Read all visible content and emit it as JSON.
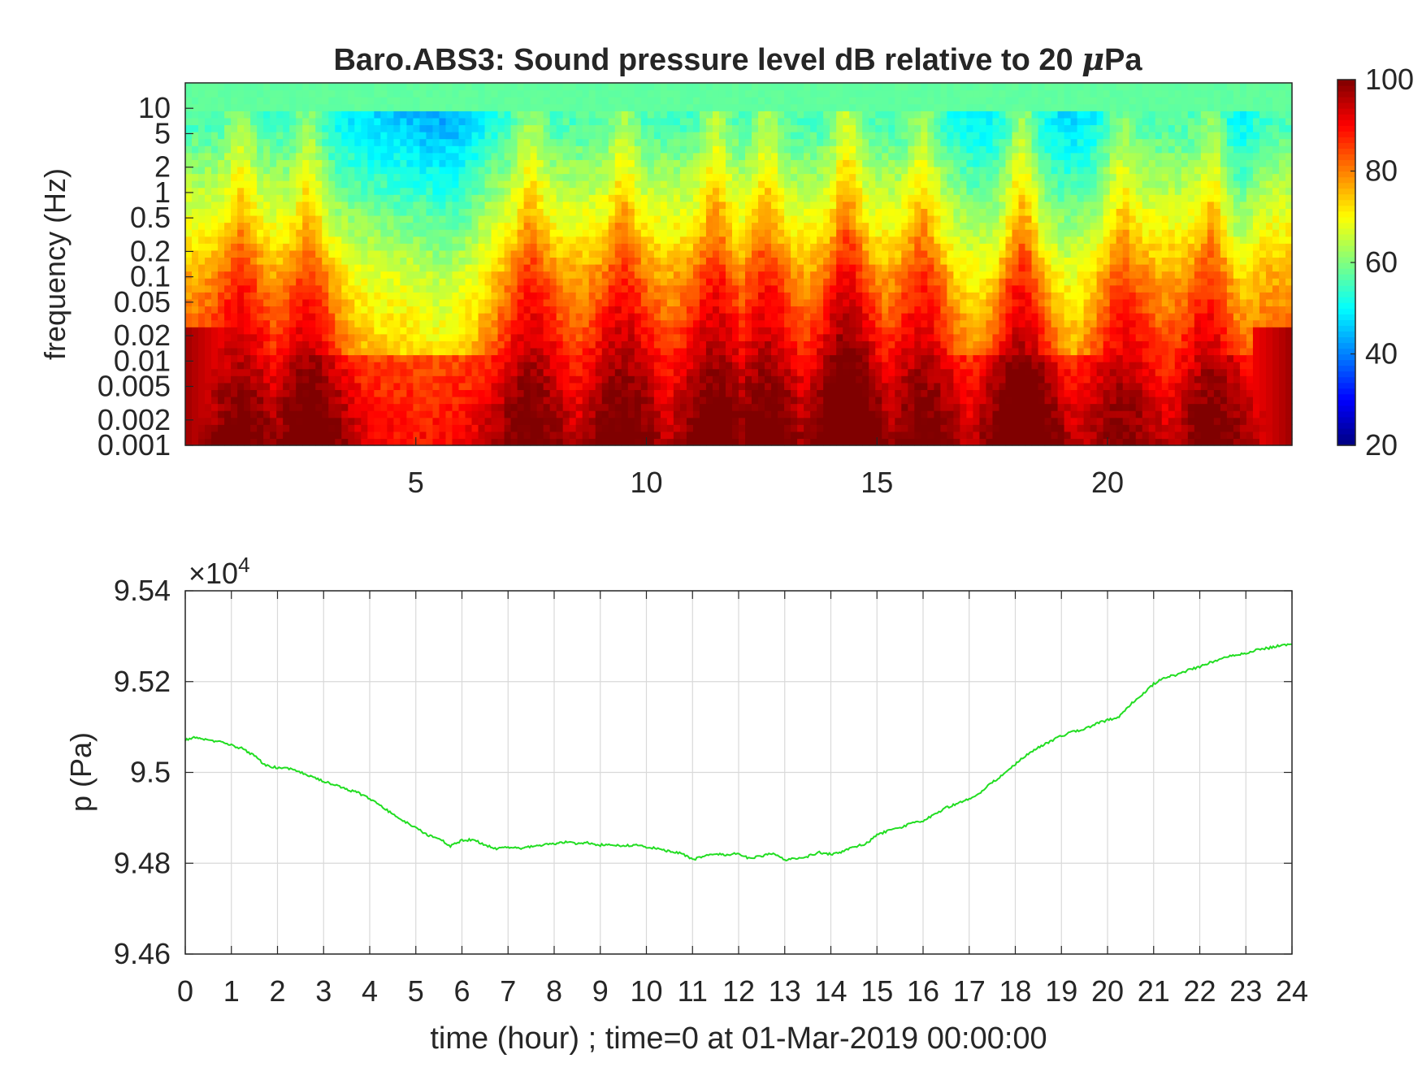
{
  "figure": {
    "colors": {
      "axis": "#262626",
      "grid": "#d9d9d9",
      "line": "#22dd22",
      "background": "#ffffff"
    }
  },
  "chart_data": [
    {
      "type": "heatmap",
      "title": "Baro.ABS3: Sound pressure level dB relative to 20 μPa",
      "title_main": "Baro.ABS3: Sound pressure level dB relative to 20 ",
      "title_mu": "μ",
      "title_tail": "Pa",
      "xlabel": "",
      "ylabel": "frequency (Hz)",
      "xlim": [
        0,
        24
      ],
      "xticks": [
        5,
        10,
        15,
        20
      ],
      "xtick_labels": [
        "5",
        "10",
        "15",
        "20"
      ],
      "yscale": "log",
      "ylim": [
        0.001,
        20
      ],
      "yticks": [
        0.001,
        0.002,
        0.005,
        0.01,
        0.02,
        0.05,
        0.1,
        0.2,
        0.5,
        1,
        2,
        5,
        10
      ],
      "ytick_labels": [
        "0.001",
        "0.002",
        "0.005",
        "0.01",
        "0.02",
        "0.05",
        "0.1",
        "0.2",
        "0.5",
        "1",
        "2",
        "5",
        "10"
      ],
      "colormap": "jet",
      "clim": [
        20,
        100
      ],
      "colorbar_ticks": [
        20,
        40,
        60,
        80,
        100
      ],
      "colorbar_labels": [
        "20",
        "40",
        "60",
        "80",
        "100"
      ],
      "peaks": [
        {
          "t": 1.2,
          "v": 0.7
        },
        {
          "t": 2.7,
          "v": 0.8
        },
        {
          "t": 7.5,
          "v": 0.7
        },
        {
          "t": 9.5,
          "v": 0.75
        },
        {
          "t": 11.5,
          "v": 0.8
        },
        {
          "t": 12.6,
          "v": 0.75
        },
        {
          "t": 14.35,
          "v": 1.0
        },
        {
          "t": 16.0,
          "v": 0.7
        },
        {
          "t": 18.15,
          "v": 0.95
        },
        {
          "t": 20.3,
          "v": 0.6
        },
        {
          "t": 22.3,
          "v": 0.7
        }
      ],
      "quiet_regions": [
        {
          "t": 4.3,
          "w": 1.0,
          "v": 0.55
        },
        {
          "t": 5.8,
          "w": 0.6,
          "v": 0.55
        },
        {
          "t": 17.2,
          "w": 0.5,
          "v": 0.4
        },
        {
          "t": 19.2,
          "w": 0.6,
          "v": 0.5
        },
        {
          "t": 22.8,
          "w": 0.3,
          "v": 0.4
        }
      ]
    },
    {
      "type": "line",
      "xlabel": "time (hour) ; time=0 at 01-Mar-2019 00:00:00",
      "ylabel": "p (Pa)",
      "xlim": [
        0,
        24
      ],
      "ylim": [
        94600,
        95400
      ],
      "xticks": [
        0,
        1,
        2,
        3,
        4,
        5,
        6,
        7,
        8,
        9,
        10,
        11,
        12,
        13,
        14,
        15,
        16,
        17,
        18,
        19,
        20,
        21,
        22,
        23,
        24
      ],
      "xtick_labels": [
        "0",
        "1",
        "2",
        "3",
        "4",
        "5",
        "6",
        "7",
        "8",
        "9",
        "10",
        "11",
        "12",
        "13",
        "14",
        "15",
        "16",
        "17",
        "18",
        "19",
        "20",
        "21",
        "22",
        "23",
        "24"
      ],
      "yticks": [
        94600,
        94800,
        95000,
        95200,
        95400
      ],
      "ytick_labels": [
        "9.46",
        "9.48",
        "9.5",
        "9.52",
        "9.54"
      ],
      "exponent_prefix": "×10",
      "exponent_power": "4",
      "grid": true,
      "series": [
        {
          "color": "#22dd22",
          "x": [
            0,
            0.25,
            0.5,
            0.75,
            1,
            1.25,
            1.5,
            1.75,
            2,
            2.25,
            2.5,
            2.75,
            3,
            3.25,
            3.5,
            3.75,
            4,
            4.25,
            4.5,
            4.75,
            5,
            5.25,
            5.5,
            5.75,
            6,
            6.25,
            6.5,
            6.75,
            7,
            7.25,
            7.5,
            7.75,
            8,
            8.25,
            8.5,
            8.75,
            9,
            9.25,
            9.5,
            9.75,
            10,
            10.25,
            10.5,
            10.75,
            11,
            11.25,
            11.5,
            11.75,
            12,
            12.25,
            12.5,
            12.75,
            13,
            13.25,
            13.5,
            13.75,
            14,
            14.25,
            14.5,
            14.75,
            15,
            15.25,
            15.5,
            15.75,
            16,
            16.25,
            16.5,
            16.75,
            17,
            17.25,
            17.5,
            17.75,
            18,
            18.25,
            18.5,
            18.75,
            19,
            19.25,
            19.5,
            19.75,
            20,
            20.25,
            20.5,
            20.75,
            21,
            21.25,
            21.5,
            21.75,
            22,
            22.25,
            22.5,
            22.75,
            23,
            23.25,
            23.5,
            23.75,
            24
          ],
          "y": [
            95072,
            95078,
            95070,
            95068,
            95060,
            95052,
            95036,
            95015,
            95010,
            95008,
            95001,
            94990,
            94980,
            94972,
            94963,
            94955,
            94942,
            94927,
            94907,
            94892,
            94878,
            94862,
            94855,
            94838,
            94850,
            94852,
            94840,
            94832,
            94836,
            94833,
            94837,
            94840,
            94843,
            94847,
            94843,
            94845,
            94840,
            94842,
            94838,
            94840,
            94836,
            94832,
            94826,
            94822,
            94808,
            94815,
            94820,
            94818,
            94822,
            94810,
            94816,
            94822,
            94808,
            94810,
            94815,
            94824,
            94820,
            94825,
            94836,
            94842,
            94862,
            94872,
            94878,
            94888,
            94893,
            94907,
            94922,
            94932,
            94942,
            94957,
            94978,
            94996,
            95018,
            95040,
            95055,
            95068,
            95080,
            95090,
            95095,
            95107,
            95115,
            95122,
            95150,
            95170,
            95195,
            95210,
            95215,
            95225,
            95232,
            95243,
            95252,
            95258,
            95262,
            95270,
            95274,
            95280,
            95282
          ]
        }
      ]
    }
  ]
}
